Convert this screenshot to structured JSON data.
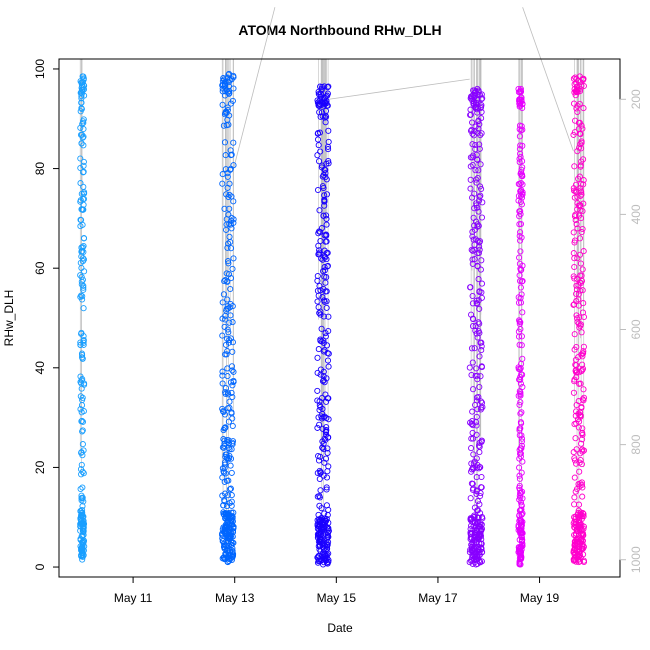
{
  "chart_data": {
    "type": "scatter",
    "title": "ATOM4 Northbound RHw_DLH",
    "xlabel": "Date",
    "ylabel": "RHw_DLH",
    "xlim": [
      "2016-05-09T13:00",
      "2016-05-20T14:00"
    ],
    "ylim": [
      -2,
      102
    ],
    "x_ticks": [
      {
        "date": "2016-05-11",
        "label": "May 11"
      },
      {
        "date": "2016-05-13",
        "label": "May 13"
      },
      {
        "date": "2016-05-15",
        "label": "May 15"
      },
      {
        "date": "2016-05-17",
        "label": "May 17"
      },
      {
        "date": "2016-05-19",
        "label": "May 19"
      }
    ],
    "y_ticks": [
      0,
      20,
      40,
      60,
      80,
      100
    ],
    "right_axis": {
      "ticks": [
        200,
        400,
        600,
        800,
        1000
      ],
      "reversed": true,
      "range": [
        130,
        1030
      ],
      "color": "#bdbdbd"
    },
    "grid": false,
    "legend": "none",
    "marker": "open-circle",
    "series": [
      {
        "start": "2016-05-09T23:00",
        "end": "2016-05-10T00:00",
        "color": "#1a9fff",
        "rh_range": [
          1.5,
          98.5
        ]
      },
      {
        "start": "2016-05-12T18:00",
        "end": "2016-05-12T23:30",
        "color": "#0066ff",
        "rh_range": [
          1.0,
          99.0
        ]
      },
      {
        "start": "2016-05-14T15:00",
        "end": "2016-05-14T20:30",
        "color": "#1a00ff",
        "rh_range": [
          0.5,
          96.5
        ]
      },
      {
        "start": "2016-05-17T15:00",
        "end": "2016-05-17T21:00",
        "color": "#8800ff",
        "rh_range": [
          0.5,
          96.0
        ]
      },
      {
        "start": "2016-05-18T14:00",
        "end": "2016-05-18T16:00",
        "color": "#e600ff",
        "rh_range": [
          0.5,
          96.0
        ]
      },
      {
        "start": "2016-05-19T16:00",
        "end": "2016-05-19T21:00",
        "color": "#ff00cc",
        "rh_range": [
          1.0,
          98.5
        ]
      }
    ],
    "pressure_trace": {
      "color": "#b3b3b3",
      "connectors": [
        {
          "from": [
            "2016-05-12T23:30",
            320
          ],
          "to": [
            "2016-05-13T19:00",
            40
          ]
        },
        {
          "from": [
            "2016-05-14T20:30",
            200
          ],
          "to": [
            "2016-05-17T15:00",
            165
          ]
        },
        {
          "from": [
            "2016-05-18T16:00",
            40
          ],
          "to": [
            "2016-05-19T16:00",
            290
          ]
        }
      ]
    }
  }
}
